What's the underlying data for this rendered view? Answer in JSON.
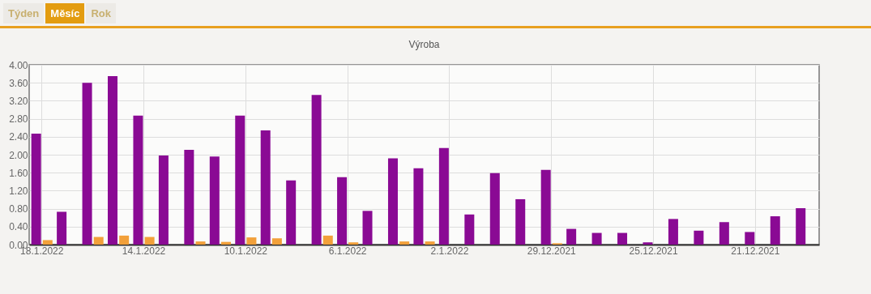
{
  "chart_data": {
    "type": "bar",
    "title": "Výroba",
    "annotations": [
      "Týden",
      "Měsíc",
      "Rok"
    ],
    "categories": [
      "18.1.2022",
      null,
      null,
      null,
      "14.1.2022",
      null,
      null,
      null,
      "10.1.2022",
      null,
      null,
      null,
      "6.1.2022",
      null,
      null,
      null,
      "2.1.2022",
      null,
      null,
      null,
      "29.12.2021",
      null,
      null,
      null,
      "25.12.2021",
      null,
      null,
      null,
      "21.12.2021",
      null,
      null
    ],
    "series": [
      {
        "color": "#8a0a94",
        "values": [
          2.47,
          0.73,
          3.6,
          3.75,
          2.87,
          1.98,
          2.11,
          1.96,
          2.87,
          2.54,
          1.43,
          3.33,
          1.5,
          0.75,
          1.92,
          1.7,
          2.15,
          0.67,
          1.59,
          1.01,
          1.66,
          0.35,
          0.26,
          0.26,
          0.05,
          0.57,
          0.31,
          0.5,
          0.28,
          0.63,
          0.81
        ]
      },
      {
        "color": "#f2a03a",
        "values": [
          0.1,
          0,
          0.17,
          0.2,
          0.17,
          0,
          0.07,
          0.06,
          0.16,
          0.14,
          0,
          0.2,
          0.05,
          0,
          0.07,
          0.07,
          0,
          0,
          0,
          0,
          0.03,
          0,
          0,
          0,
          0,
          0,
          0,
          0,
          0,
          0,
          0
        ]
      }
    ],
    "ylim": [
      0,
      4
    ],
    "yticks": [
      {
        "value": 0,
        "label": "0.00"
      },
      {
        "value": 0.4,
        "label": "0.40"
      },
      {
        "value": 0.8,
        "label": "0.80"
      },
      {
        "value": 1.2,
        "label": "1.20"
      },
      {
        "value": 1.6,
        "label": "1.60"
      },
      {
        "value": 2,
        "label": "2.00"
      },
      {
        "value": 2.4,
        "label": "2.40"
      },
      {
        "value": 2.8,
        "label": "2.80"
      },
      {
        "value": 3.2,
        "label": "3.20"
      },
      {
        "value": 3.6,
        "label": "3.60"
      },
      {
        "value": 4,
        "label": "4.00"
      }
    ],
    "grid": true,
    "legend": false
  }
}
